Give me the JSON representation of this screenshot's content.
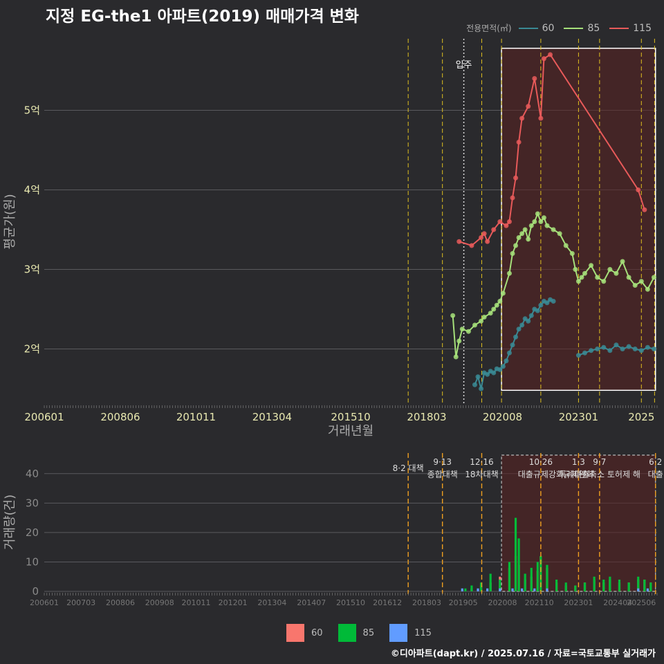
{
  "title": "지정 EG-the1 아파트(2019) 매매가격 변화",
  "legend_title": "전용면적(㎡)",
  "series_colors": {
    "60": "#3a8a94",
    "85": "#a6e07a",
    "115": "#e85a5a"
  },
  "bar_colors": {
    "60": "#f8766d",
    "85": "#00ba38",
    "115": "#619cff"
  },
  "credit": "©디아파트(dapt.kr) / 2025.07.16 / 자료=국토교통부 실거래가",
  "chart_data": [
    {
      "type": "line",
      "title": "지정 EG-the1 아파트(2019) 매매가격 변화",
      "xlabel": "거래년월",
      "ylabel": "평균가(원)",
      "xlim": [
        2006.0,
        2025.5
      ],
      "ylim": [
        1.3,
        5.9
      ],
      "y_ticks": [
        2,
        3,
        4,
        5
      ],
      "y_tick_labels": [
        "2억",
        "3억",
        "4억",
        "5억"
      ],
      "x_ticks": [
        2006.0,
        2008.42,
        2010.83,
        2013.25,
        2015.75,
        2018.17,
        2020.58,
        2023.0,
        2025.0
      ],
      "x_tick_labels": [
        "200601",
        "200806",
        "201011",
        "201304",
        "201510",
        "201803",
        "202008",
        "202301",
        "2025"
      ],
      "move_in": {
        "x": 2019.35,
        "label": "입주"
      },
      "policy_lines": [
        2017.58,
        2018.67,
        2019.92,
        2020.55,
        2021.8,
        2023.0,
        2023.67,
        2025.0,
        2025.42
      ],
      "highlight": {
        "x": [
          2020.55,
          2025.45
        ],
        "y": [
          1.48,
          5.78
        ]
      },
      "series": [
        {
          "name": "60",
          "x": [
            2019.7,
            2019.8,
            2019.9,
            2020.0,
            2020.1,
            2020.2,
            2020.3,
            2020.4,
            2020.5,
            2020.6,
            2020.7,
            2020.8,
            2020.9,
            2021.0,
            2021.1,
            2021.2,
            2021.3,
            2021.4,
            2021.5,
            2021.6,
            2021.7,
            2021.8,
            2021.9,
            2022.0,
            2022.1,
            2022.2,
            2022.4,
            2022.6,
            2022.8,
            2023.0,
            2023.2,
            2023.4,
            2023.6,
            2023.8,
            2024.0,
            2024.2,
            2024.4,
            2024.6,
            2024.8,
            2025.0,
            2025.2,
            2025.4
          ],
          "values": [
            1.55,
            1.65,
            1.5,
            1.7,
            1.68,
            1.72,
            1.7,
            1.75,
            1.74,
            1.78,
            1.85,
            1.95,
            2.05,
            2.15,
            2.25,
            2.3,
            2.38,
            2.35,
            2.42,
            2.5,
            2.48,
            2.55,
            2.6,
            2.58,
            2.62,
            2.6,
            null,
            null,
            null,
            1.92,
            1.95,
            1.98,
            2.0,
            2.02,
            1.98,
            2.05,
            2.0,
            2.03,
            2.0,
            1.98,
            2.02,
            2.0
          ]
        },
        {
          "name": "85",
          "x": [
            2019.0,
            2019.1,
            2019.2,
            2019.3,
            2019.5,
            2019.7,
            2019.9,
            2020.0,
            2020.2,
            2020.3,
            2020.4,
            2020.5,
            2020.6,
            2020.8,
            2020.9,
            2021.0,
            2021.1,
            2021.2,
            2021.3,
            2021.4,
            2021.5,
            2021.6,
            2021.7,
            2021.8,
            2021.9,
            2022.0,
            2022.2,
            2022.4,
            2022.6,
            2022.8,
            2022.9,
            2023.0,
            2023.1,
            2023.2,
            2023.4,
            2023.6,
            2023.8,
            2024.0,
            2024.2,
            2024.4,
            2024.6,
            2024.8,
            2025.0,
            2025.2,
            2025.4
          ],
          "values": [
            2.42,
            1.9,
            2.1,
            2.25,
            2.22,
            2.3,
            2.35,
            2.4,
            2.45,
            2.5,
            2.55,
            2.6,
            2.7,
            2.95,
            3.2,
            3.3,
            3.4,
            3.45,
            3.5,
            3.38,
            3.55,
            3.6,
            3.7,
            3.6,
            3.65,
            3.55,
            3.5,
            3.45,
            3.3,
            3.2,
            3.0,
            2.85,
            2.9,
            2.95,
            3.05,
            2.9,
            2.85,
            3.0,
            2.95,
            3.1,
            2.9,
            2.8,
            2.85,
            2.75,
            2.9
          ]
        },
        {
          "name": "115",
          "x": [
            2019.2,
            2019.6,
            2019.9,
            2020.0,
            2020.1,
            2020.3,
            2020.5,
            2020.7,
            2020.8,
            2020.9,
            2021.0,
            2021.1,
            2021.2,
            2021.4,
            2021.6,
            2021.8,
            2021.9,
            2022.1,
            2024.9,
            2025.1
          ],
          "values": [
            3.35,
            3.3,
            3.4,
            3.45,
            3.35,
            3.5,
            3.6,
            3.55,
            3.6,
            3.9,
            4.15,
            4.6,
            4.9,
            5.05,
            5.4,
            4.9,
            5.65,
            5.7,
            4.0,
            3.75
          ]
        }
      ]
    },
    {
      "type": "bar",
      "xlabel": "",
      "ylabel": "거래량(건)",
      "xlim": [
        2006.0,
        2025.5
      ],
      "ylim": [
        0,
        47
      ],
      "y_ticks": [
        0,
        10,
        20,
        30,
        40
      ],
      "x_ticks": [
        2006.0,
        2007.17,
        2008.42,
        2009.67,
        2010.83,
        2012.0,
        2013.25,
        2014.5,
        2015.75,
        2016.92,
        2018.17,
        2019.33,
        2020.58,
        2021.75,
        2023.0,
        2024.25,
        2025.0
      ],
      "x_tick_labels": [
        "200601",
        "200703",
        "200806",
        "200908",
        "201011",
        "201201",
        "201304",
        "201407",
        "201510",
        "201612",
        "201803",
        "201905",
        "202008",
        "202110",
        "202301",
        "202404",
        "202506"
      ],
      "policies": [
        {
          "x": 2017.58,
          "date": "8·2 대책",
          "label": ""
        },
        {
          "x": 2018.67,
          "date": "9·13",
          "label": "종합대책"
        },
        {
          "x": 2019.92,
          "date": "12·16",
          "label": "18차대책"
        },
        {
          "x": 2021.8,
          "date": "10·26",
          "label": "대출규제강화"
        },
        {
          "x": 2023.0,
          "date": "1·3",
          "label": "규제완화"
        },
        {
          "x": 2023.67,
          "date": "9·7",
          "label": "특례대출축소 토허제 해"
        },
        {
          "x": 2025.45,
          "date": "6·2",
          "label": "대출"
        }
      ],
      "highlight": {
        "x": [
          2020.55,
          2025.45
        ]
      },
      "series": [
        {
          "name": "60",
          "x": [
            2019.6,
            2019.9,
            2020.2,
            2020.5,
            2020.8,
            2021.0,
            2021.1,
            2021.3,
            2021.5,
            2021.7,
            2021.8,
            2022.0,
            2022.3,
            2022.6,
            2022.9,
            2023.2,
            2023.5,
            2023.8,
            2024.0,
            2024.3,
            2024.6,
            2024.9,
            2025.1,
            2025.3
          ],
          "values": [
            1,
            2,
            3,
            5,
            8,
            12,
            9,
            4,
            5,
            7,
            12,
            8,
            3,
            2,
            2,
            3,
            4,
            3,
            4,
            3,
            3,
            4,
            4,
            3
          ]
        },
        {
          "name": "85",
          "x": [
            2019.4,
            2019.6,
            2019.9,
            2020.2,
            2020.5,
            2020.8,
            2021.0,
            2021.1,
            2021.3,
            2021.5,
            2021.7,
            2021.8,
            2022.0,
            2022.3,
            2022.6,
            2022.9,
            2023.2,
            2023.5,
            2023.8,
            2024.0,
            2024.3,
            2024.6,
            2024.9,
            2025.1,
            2025.3
          ],
          "values": [
            1,
            2,
            3,
            6,
            4,
            10,
            25,
            18,
            6,
            8,
            10,
            12,
            9,
            4,
            3,
            2,
            3,
            5,
            4,
            5,
            4,
            3,
            5,
            4,
            3
          ]
        },
        {
          "name": "115",
          "x": [
            2019.3,
            2019.8,
            2020.1,
            2020.5,
            2020.9,
            2021.2,
            2021.6,
            2022.0,
            2024.9,
            2025.2
          ],
          "values": [
            1,
            1,
            1,
            1,
            1,
            1,
            1,
            1,
            1,
            1
          ]
        }
      ]
    }
  ]
}
